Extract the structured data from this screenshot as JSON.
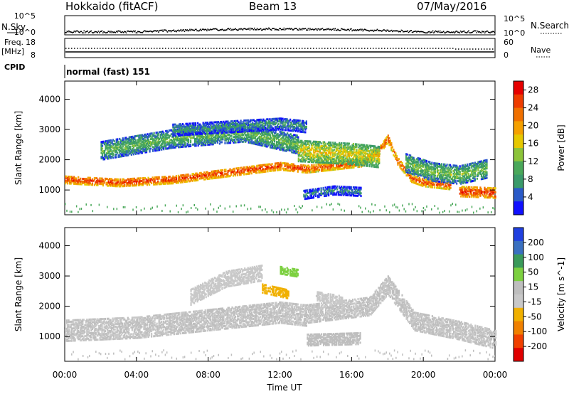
{
  "header": {
    "title": "Hokkaido (fitACF)",
    "beam": "Beam 13",
    "date": "07/May/2016"
  },
  "top_panels": {
    "nsky_label": "N.Sky",
    "nsearch_label": "N.Search",
    "noise_ticks": [
      "10^5",
      "10^0"
    ],
    "freq_label": "Freq.",
    "freq_unit": "[MHz]",
    "freq_ticks": [
      "18",
      "8"
    ],
    "nave_label": "Nave",
    "nave_ticks": [
      "60",
      "0"
    ],
    "cpid_label": "CPID",
    "cpid_value": "normal (fast) 151"
  },
  "colors": {
    "power_scale": [
      "#1010ff",
      "#2a5ac8",
      "#3a9a6a",
      "#4aa85a",
      "#8cc43a",
      "#e6c800",
      "#f5a000",
      "#f07000",
      "#ee3c00",
      "#e60000"
    ],
    "velocity_scale": [
      "#2040e0",
      "#3a70c0",
      "#3a9a5a",
      "#7cd040",
      "#bebebe",
      "#c8c8c8",
      "#f0b000",
      "#f08000",
      "#f04000",
      "#e00000"
    ]
  },
  "chart_data": [
    {
      "type": "heatmap",
      "title": "Power",
      "ylabel": "Slant Range [km]",
      "xlabel": "Time UT",
      "x_ticks": [
        "00:00",
        "04:00",
        "08:00",
        "12:00",
        "16:00",
        "20:00",
        "00:00"
      ],
      "y_ticks": [
        "1000",
        "2000",
        "3000",
        "4000"
      ],
      "ylim": [
        180,
        4600
      ],
      "xlim_hours": [
        0,
        24
      ],
      "colorbar": {
        "label": "Power [dB]",
        "ticks": [
          "4",
          "8",
          "12",
          "16",
          "20",
          "24",
          "28"
        ],
        "range": [
          0,
          30
        ]
      },
      "bands": [
        {
          "x": [
            0,
            3,
            6,
            8,
            10,
            12,
            13.5
          ],
          "y": [
            1350,
            1250,
            1350,
            1500,
            1650,
            1800,
            1700
          ],
          "width_km": 260,
          "value_db": 26
        },
        {
          "x": [
            13.5,
            15,
            16.5,
            17.5,
            18
          ],
          "y": [
            1700,
            1800,
            1900,
            2300,
            2700
          ],
          "width_km": 250,
          "value_db": 25
        },
        {
          "x": [
            18,
            18.5,
            19.3,
            20,
            21.5
          ],
          "y": [
            2700,
            2000,
            1400,
            1250,
            1150
          ],
          "width_km": 260,
          "value_db": 25
        },
        {
          "x": [
            22,
            24
          ],
          "y": [
            950,
            900
          ],
          "width_km": 320,
          "value_db": 27
        },
        {
          "x": [
            2,
            6,
            10,
            13
          ],
          "y": [
            2300,
            2700,
            2900,
            2500
          ],
          "width_km": 600,
          "value_db": 12
        },
        {
          "x": [
            13,
            16,
            17.5
          ],
          "y": [
            2300,
            2200,
            2100
          ],
          "width_km": 700,
          "value_db": 17
        },
        {
          "x": [
            6,
            9,
            12,
            13.5
          ],
          "y": [
            3000,
            3100,
            3200,
            3100
          ],
          "width_km": 400,
          "value_db": 9
        },
        {
          "x": [
            13.3,
            15,
            16.5
          ],
          "y": [
            850,
            1000,
            950
          ],
          "width_km": 300,
          "value_db": 8
        },
        {
          "x": [
            19,
            20.5,
            22,
            23.5
          ],
          "y": [
            1900,
            1600,
            1500,
            1700
          ],
          "width_km": 600,
          "value_db": 13
        }
      ]
    },
    {
      "type": "heatmap",
      "title": "Velocity",
      "ylabel": "Slant Range [km]",
      "xlabel": "Time UT",
      "x_ticks": [
        "00:00",
        "04:00",
        "08:00",
        "12:00",
        "16:00",
        "20:00",
        "00:00"
      ],
      "y_ticks": [
        "1000",
        "2000",
        "3000",
        "4000"
      ],
      "ylim": [
        180,
        4600
      ],
      "xlim_hours": [
        0,
        24
      ],
      "colorbar": {
        "label": "Velocity [m s^-1]",
        "ticks": [
          "200",
          "100",
          "50",
          "15",
          "-15",
          "-50",
          "-100",
          "-200"
        ],
        "range": [
          -250,
          250
        ]
      },
      "bands": [
        {
          "x": [
            0,
            4,
            8,
            12,
            13.5
          ],
          "y": [
            1200,
            1300,
            1550,
            1800,
            1700
          ],
          "width_km": 700,
          "value_ms": 0
        },
        {
          "x": [
            13.5,
            17,
            18,
            19.5,
            22,
            24
          ],
          "y": [
            1750,
            2000,
            2700,
            1500,
            1200,
            900
          ],
          "width_km": 600,
          "value_ms": 0
        },
        {
          "x": [
            13.5,
            16.5
          ],
          "y": [
            900,
            950
          ],
          "width_km": 400,
          "value_ms": 45
        },
        {
          "x": [
            7,
            9,
            11
          ],
          "y": [
            2300,
            2900,
            3100
          ],
          "width_km": 500,
          "value_ms": -40
        },
        {
          "x": [
            11,
            12.5
          ],
          "y": [
            2600,
            2400
          ],
          "width_km": 300,
          "value_ms": -60
        },
        {
          "x": [
            12,
            13
          ],
          "y": [
            3200,
            3100
          ],
          "width_km": 250,
          "value_ms": 60
        },
        {
          "x": [
            14,
            15.5
          ],
          "y": [
            2350,
            2200
          ],
          "width_km": 300,
          "value_ms": -30
        }
      ]
    }
  ]
}
